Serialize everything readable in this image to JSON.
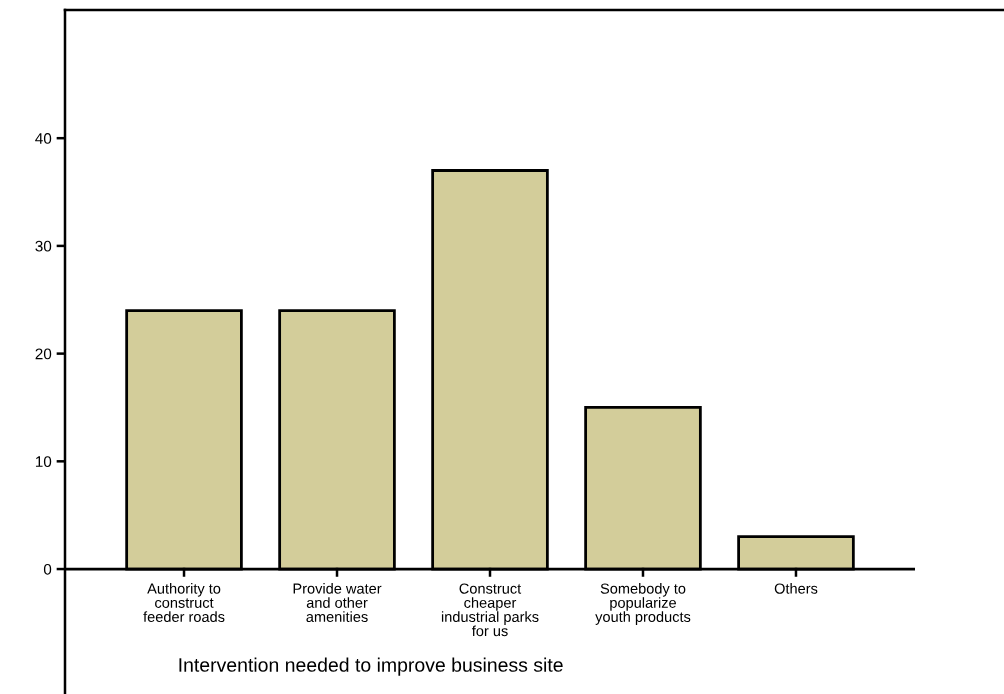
{
  "chart_data": {
    "type": "bar",
    "categories": [
      "Authority to\nconstruct\nfeeder roads",
      "Provide water\nand other\namenities",
      "Construct\ncheaper\nindustrial parks\nfor us",
      "Somebody to\npopularize\nyouth products",
      "Others"
    ],
    "values": [
      24,
      24,
      37,
      15,
      3
    ],
    "color": "#d3cd9a",
    "xlabel": "Intervention needed to improve business site",
    "ylim": [
      -11.6,
      51.9
    ],
    "yticks": [
      0,
      10,
      20,
      30,
      40
    ],
    "grid": false
  }
}
